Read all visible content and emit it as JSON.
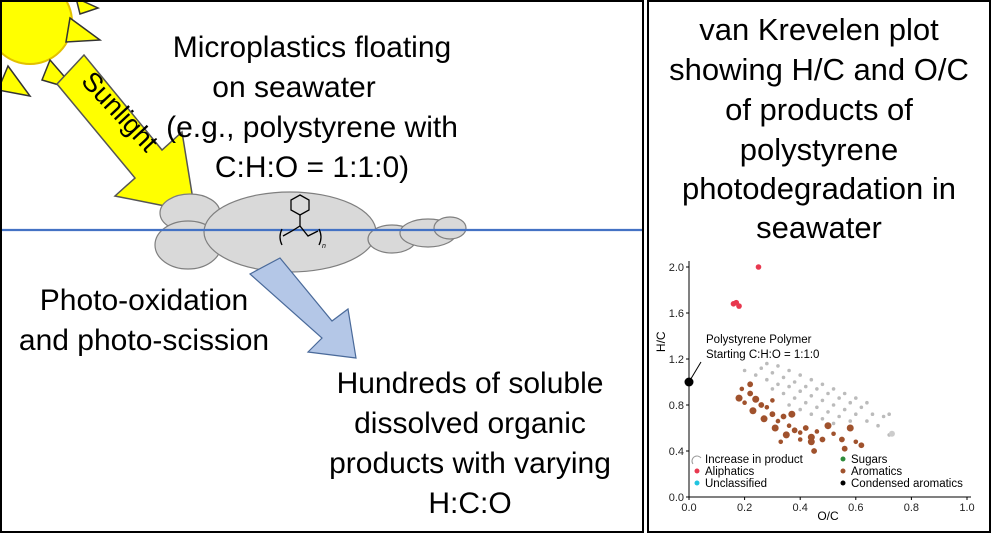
{
  "scene": {
    "text_microplastics": [
      "Microplastics floating",
      "on seawater",
      "(e.g., polystyrene with",
      "C:H:O = 1:1:0)"
    ],
    "sunlight_label": "Sunlight",
    "text_photo": [
      "Photo-oxidation",
      "and photo-scission"
    ],
    "text_products": [
      "Hundreds of soluble",
      "dissolved organic",
      "products with varying",
      "H:C:O"
    ],
    "polymer_subscript": "n",
    "colors": {
      "sun": "#ffff00",
      "water": "#4472c4",
      "arrow_blue": "#b4c7e7",
      "particle": "#d9d9d9"
    }
  },
  "panel": {
    "title": [
      "van Krevelen plot",
      "showing H/C and O/C",
      "of products of",
      "polystyrene",
      "photodegradation in",
      "seawater"
    ]
  },
  "chart_data": {
    "type": "scatter",
    "xlabel": "O/C",
    "ylabel": "H/C",
    "xlim": [
      0.0,
      1.0
    ],
    "ylim": [
      0.0,
      2.0
    ],
    "xticks": [
      "0.0",
      "0.2",
      "0.4",
      "0.6",
      "0.8",
      "1.0"
    ],
    "yticks": [
      "0.0",
      "0.4",
      "0.8",
      "1.2",
      "1.6",
      "2.0"
    ],
    "annotation": [
      "Polystyrene Polymer",
      "Starting C:H:O = 1:1:0"
    ],
    "polymer_point": {
      "x": 0.0,
      "y": 1.0
    },
    "legend": {
      "placement": "bottom",
      "items": [
        {
          "label": "Increase in product",
          "color": "#999999"
        },
        {
          "label": "Sugars",
          "color": "#2e8b3c"
        },
        {
          "label": "Aliphatics",
          "color": "#e8384f"
        },
        {
          "label": "Aromatics",
          "color": "#a0522d"
        },
        {
          "label": "Unclassified",
          "color": "#21c4e0"
        },
        {
          "label": "Condensed aromatics",
          "color": "#000000"
        }
      ]
    },
    "series": [
      {
        "name": "Aliphatics",
        "color": "#e8384f",
        "points": [
          [
            0.25,
            2.0
          ],
          [
            0.16,
            1.68
          ],
          [
            0.18,
            1.66
          ],
          [
            0.17,
            1.69
          ]
        ]
      },
      {
        "name": "Aromatics",
        "color": "#a0522d",
        "points": [
          [
            0.19,
            0.94
          ],
          [
            0.22,
            0.9
          ],
          [
            0.24,
            0.85
          ],
          [
            0.2,
            0.82
          ],
          [
            0.26,
            0.8
          ],
          [
            0.23,
            0.75
          ],
          [
            0.28,
            0.78
          ],
          [
            0.3,
            0.72
          ],
          [
            0.27,
            0.68
          ],
          [
            0.32,
            0.66
          ],
          [
            0.34,
            0.7
          ],
          [
            0.31,
            0.6
          ],
          [
            0.36,
            0.62
          ],
          [
            0.38,
            0.58
          ],
          [
            0.35,
            0.54
          ],
          [
            0.4,
            0.56
          ],
          [
            0.42,
            0.6
          ],
          [
            0.44,
            0.52
          ],
          [
            0.46,
            0.57
          ],
          [
            0.48,
            0.5
          ],
          [
            0.5,
            0.62
          ],
          [
            0.52,
            0.55
          ],
          [
            0.55,
            0.5
          ],
          [
            0.58,
            0.6
          ],
          [
            0.6,
            0.48
          ],
          [
            0.62,
            0.45
          ],
          [
            0.44,
            0.48
          ],
          [
            0.4,
            0.5
          ],
          [
            0.45,
            0.4
          ],
          [
            0.37,
            0.72
          ],
          [
            0.3,
            0.84
          ],
          [
            0.22,
            0.98
          ],
          [
            0.18,
            0.86
          ],
          [
            0.33,
            0.48
          ],
          [
            0.56,
            0.42
          ]
        ]
      },
      {
        "name": "Increase in product",
        "color": "#bbbbbb",
        "points": [
          [
            0.2,
            1.1
          ],
          [
            0.24,
            1.06
          ],
          [
            0.28,
            1.02
          ],
          [
            0.32,
            0.98
          ],
          [
            0.36,
            0.96
          ],
          [
            0.4,
            0.92
          ],
          [
            0.44,
            0.88
          ],
          [
            0.48,
            0.84
          ],
          [
            0.52,
            0.8
          ],
          [
            0.56,
            0.76
          ],
          [
            0.6,
            0.72
          ],
          [
            0.64,
            0.66
          ],
          [
            0.68,
            0.62
          ],
          [
            0.72,
            0.54
          ],
          [
            0.26,
            1.12
          ],
          [
            0.3,
            1.08
          ],
          [
            0.34,
            1.04
          ],
          [
            0.38,
            1.0
          ],
          [
            0.42,
            0.96
          ],
          [
            0.46,
            0.94
          ],
          [
            0.5,
            0.9
          ],
          [
            0.54,
            0.86
          ],
          [
            0.58,
            0.82
          ],
          [
            0.62,
            0.78
          ],
          [
            0.66,
            0.72
          ],
          [
            0.3,
            0.94
          ],
          [
            0.34,
            0.9
          ],
          [
            0.38,
            0.86
          ],
          [
            0.42,
            0.82
          ],
          [
            0.46,
            0.78
          ],
          [
            0.5,
            0.74
          ],
          [
            0.54,
            0.7
          ],
          [
            0.58,
            0.66
          ],
          [
            0.36,
            0.8
          ],
          [
            0.4,
            0.76
          ],
          [
            0.44,
            0.72
          ],
          [
            0.48,
            0.68
          ],
          [
            0.52,
            0.64
          ],
          [
            0.28,
            1.16
          ],
          [
            0.32,
            1.14
          ],
          [
            0.36,
            1.1
          ],
          [
            0.4,
            1.06
          ],
          [
            0.44,
            1.02
          ],
          [
            0.48,
            0.98
          ],
          [
            0.52,
            0.94
          ],
          [
            0.56,
            0.9
          ],
          [
            0.6,
            0.86
          ],
          [
            0.64,
            0.82
          ],
          [
            0.7,
            0.7
          ],
          [
            0.72,
            0.72
          ]
        ]
      }
    ]
  }
}
